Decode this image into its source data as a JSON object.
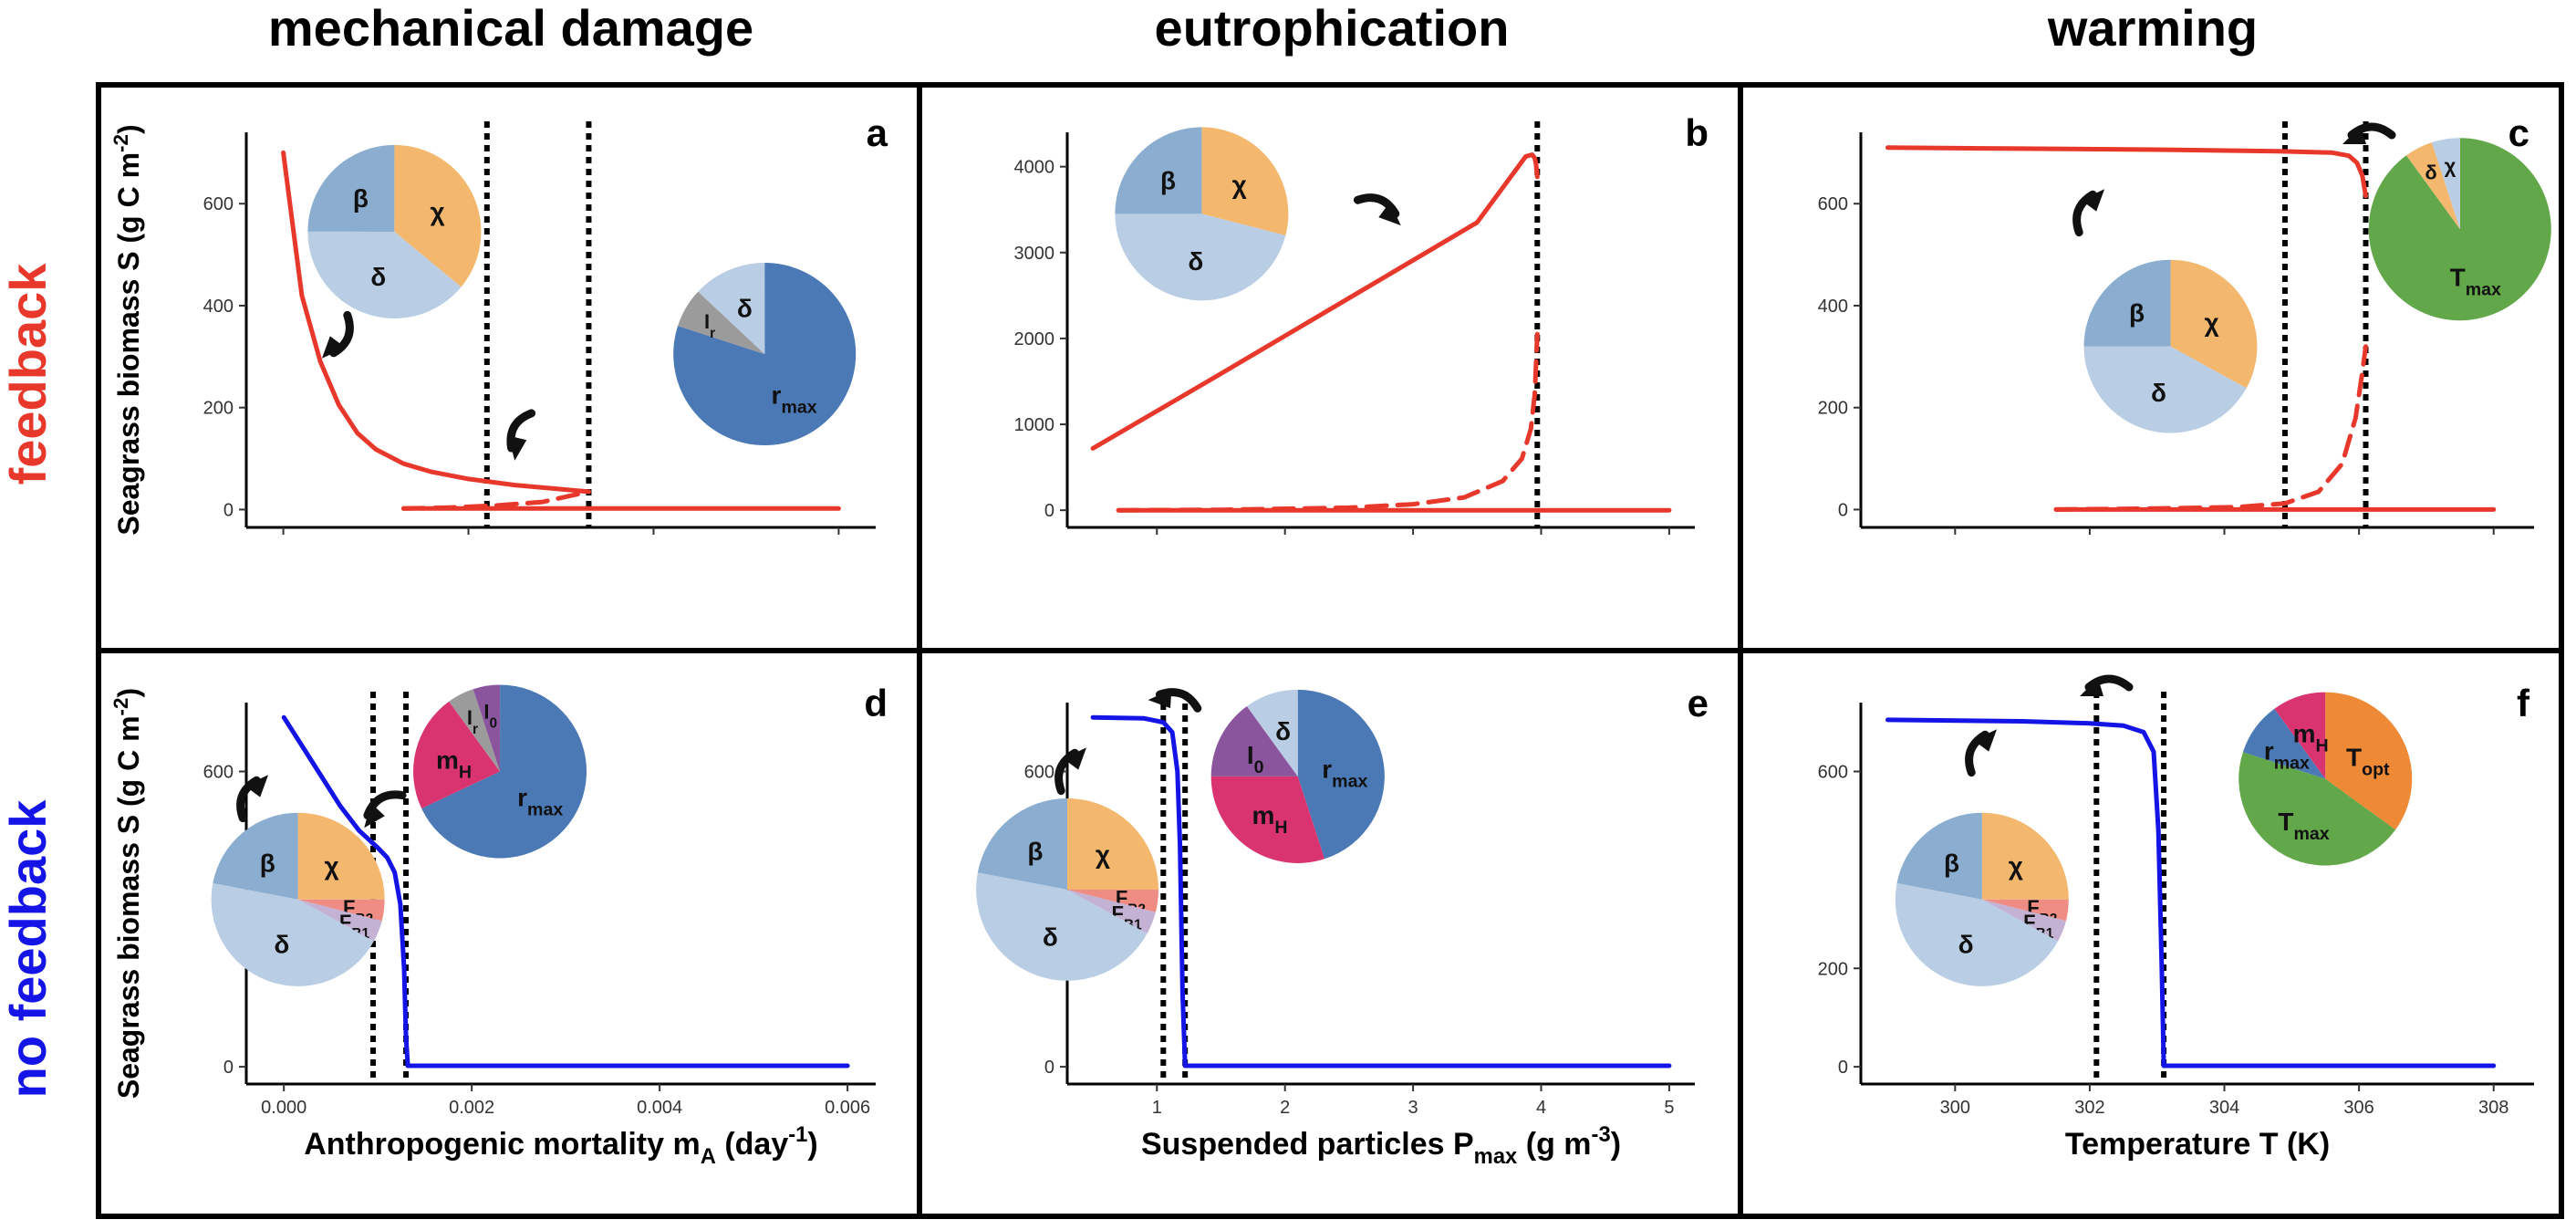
{
  "columns": [
    "mechanical damage",
    "eutrophication",
    "warming"
  ],
  "rows": [
    {
      "label": "feedback",
      "color": "#e8382b"
    },
    {
      "label": "no feedback",
      "color": "#1414e6"
    }
  ],
  "colors": {
    "feedback": "#e8382b",
    "no_feedback": "#1414e6",
    "beta": "#8aadd0",
    "chi": "#f3b86e",
    "delta": "#b9cde4",
    "rmax": "#4a79b5",
    "Ir": "#9b9b9b",
    "I0": "#8b559e",
    "mH": "#d9346f",
    "FB2": "#ef8c83",
    "FB1": "#c3b2d3",
    "Tmax": "#63a74b",
    "Topt": "#ee8a36",
    "arrow": "#111111"
  },
  "chart_data": [
    {
      "panel": "a",
      "type": "line",
      "row": 0,
      "col": 0,
      "xlabel": "",
      "ylabel": "Seagrass biomass S (g C m-2)",
      "xlim": [
        -0.0004,
        0.0064
      ],
      "ylim": [
        -35,
        740
      ],
      "xticks": [
        0,
        0.002,
        0.004,
        0.006
      ],
      "xtick_labels": [
        "",
        "",
        "",
        ""
      ],
      "yticks": [
        0,
        200,
        400,
        600
      ],
      "ytick_labels": [
        "0",
        "200",
        "400",
        "600"
      ],
      "thresholds": [
        0.0022,
        0.0033
      ],
      "series": [
        {
          "style": "solid",
          "x": [
            0,
            0.0002,
            0.0004,
            0.0006,
            0.0008,
            0.001,
            0.0013,
            0.0016,
            0.002,
            0.0025,
            0.003,
            0.0033
          ],
          "y": [
            700,
            420,
            290,
            205,
            150,
            118,
            90,
            74,
            60,
            48,
            40,
            35
          ]
        },
        {
          "style": "dashed",
          "x": [
            0.0013,
            0.0018,
            0.0023,
            0.0028,
            0.0033
          ],
          "y": [
            2,
            4,
            8,
            15,
            35
          ]
        },
        {
          "style": "solid",
          "x": [
            0.0013,
            0.006
          ],
          "y": [
            2,
            2
          ]
        }
      ],
      "pies": [
        {
          "cx": 0.0012,
          "cy": 545,
          "r": 95,
          "slices": [
            {
              "label": "χ",
              "value": 36,
              "color_key": "chi"
            },
            {
              "label": "δ",
              "value": 39,
              "color_key": "delta"
            },
            {
              "label": "β",
              "value": 25,
              "color_key": "beta"
            }
          ]
        },
        {
          "cx": 0.0052,
          "cy": 305,
          "r": 100,
          "slices": [
            {
              "label": "rmax",
              "value": 80,
              "color_key": "rmax"
            },
            {
              "label": "Ir",
              "value": 7,
              "color_key": "Ir"
            },
            {
              "label": "δ",
              "value": 13,
              "color_key": "delta"
            }
          ]
        }
      ]
    },
    {
      "panel": "b",
      "type": "line",
      "row": 0,
      "col": 1,
      "xlabel": "",
      "ylabel": "",
      "xlim": [
        0.3,
        5.2
      ],
      "ylim": [
        -200,
        4400
      ],
      "xticks": [
        1,
        2,
        3,
        4,
        5
      ],
      "xtick_labels": [
        "",
        "",
        "",
        "",
        ""
      ],
      "yticks": [
        0,
        1000,
        2000,
        3000,
        4000
      ],
      "ytick_labels": [
        "0",
        "1000",
        "2000",
        "3000",
        "4000"
      ],
      "thresholds": [
        3.97
      ],
      "series": [
        {
          "style": "solid",
          "x": [
            0.5,
            1.5,
            2.5,
            3.5,
            3.88,
            3.93,
            3.95,
            3.96,
            3.97
          ],
          "y": [
            720,
            1590,
            2470,
            3350,
            4120,
            4140,
            4100,
            4030,
            3880
          ]
        },
        {
          "style": "dashed",
          "x": [
            0.7,
            1.5,
            2.5,
            3.0,
            3.4,
            3.7,
            3.85,
            3.92,
            3.95,
            3.96,
            3.97
          ],
          "y": [
            0,
            5,
            30,
            70,
            150,
            340,
            600,
            950,
            1350,
            1700,
            2050
          ]
        },
        {
          "style": "solid",
          "x": [
            0.7,
            5.0
          ],
          "y": [
            0,
            0
          ]
        }
      ],
      "pies": [
        {
          "cx": 1.35,
          "cy": 3450,
          "r": 95,
          "slices": [
            {
              "label": "χ",
              "value": 29,
              "color_key": "chi"
            },
            {
              "label": "δ",
              "value": 46,
              "color_key": "delta"
            },
            {
              "label": "β",
              "value": 25,
              "color_key": "beta"
            }
          ]
        }
      ]
    },
    {
      "panel": "c",
      "type": "line",
      "row": 0,
      "col": 2,
      "xlabel": "",
      "ylabel": "",
      "xlim": [
        298.6,
        308.6
      ],
      "ylim": [
        -35,
        740
      ],
      "xticks": [
        300,
        302,
        304,
        306,
        308
      ],
      "xtick_labels": [
        "",
        "",
        "",
        "",
        ""
      ],
      "yticks": [
        0,
        200,
        400,
        600
      ],
      "ytick_labels": [
        "0",
        "200",
        "400",
        "600"
      ],
      "thresholds": [
        304.9,
        306.1
      ],
      "series": [
        {
          "style": "solid",
          "x": [
            299,
            301,
            303,
            304.8,
            305.6,
            305.85,
            305.97,
            306.05,
            306.1
          ],
          "y": [
            710,
            708,
            706,
            703,
            700,
            694,
            680,
            655,
            615
          ]
        },
        {
          "style": "dashed",
          "x": [
            301.5,
            303,
            304.2,
            304.9,
            305.4,
            305.75,
            305.95,
            306.05,
            306.1
          ],
          "y": [
            0,
            2,
            5,
            12,
            35,
            90,
            180,
            270,
            320
          ]
        },
        {
          "style": "solid",
          "x": [
            301.5,
            308
          ],
          "y": [
            0,
            0
          ]
        }
      ],
      "pies": [
        {
          "cx": 303.2,
          "cy": 320,
          "r": 95,
          "slices": [
            {
              "label": "χ",
              "value": 33,
              "color_key": "chi"
            },
            {
              "label": "δ",
              "value": 42,
              "color_key": "delta"
            },
            {
              "label": "β",
              "value": 25,
              "color_key": "beta"
            }
          ]
        },
        {
          "cx": 307.5,
          "cy": 550,
          "r": 100,
          "slices": [
            {
              "label": "Tmax",
              "value": 90,
              "color_key": "Tmax"
            },
            {
              "label": "δ",
              "value": 5,
              "color_key": "chi"
            },
            {
              "label": "χ",
              "value": 5,
              "color_key": "delta"
            }
          ]
        }
      ]
    },
    {
      "panel": "d",
      "type": "line",
      "row": 1,
      "col": 0,
      "xlabel": "Anthropogenic mortality mA (day-1)",
      "ylabel": "Seagrass biomass S (g C m-2)",
      "xlim": [
        -0.0004,
        0.0063
      ],
      "ylim": [
        -35,
        740
      ],
      "xticks": [
        0,
        0.002,
        0.004,
        0.006
      ],
      "xtick_labels": [
        "0.000",
        "0.002",
        "0.004",
        "0.006"
      ],
      "yticks": [
        0,
        600
      ],
      "ytick_labels": [
        "0",
        "600"
      ],
      "thresholds": [
        0.00095,
        0.0013
      ],
      "series": [
        {
          "style": "solid",
          "x": [
            0,
            0.0002,
            0.0004,
            0.0006,
            0.0008,
            0.001,
            0.0011,
            0.00118,
            0.00124,
            0.00128,
            0.0013,
            0.00132
          ],
          "y": [
            710,
            650,
            590,
            530,
            480,
            445,
            425,
            395,
            330,
            200,
            60,
            2
          ]
        },
        {
          "style": "solid",
          "x": [
            0.00132,
            0.006
          ],
          "y": [
            2,
            2
          ]
        }
      ],
      "pies": [
        {
          "cx": 0.0023,
          "cy": 600,
          "r": 95,
          "slices": [
            {
              "label": "rmax",
              "value": 68,
              "color_key": "rmax"
            },
            {
              "label": "mH",
              "value": 22,
              "color_key": "mH"
            },
            {
              "label": "Ir",
              "value": 5,
              "color_key": "Ir"
            },
            {
              "label": "I0",
              "value": 5,
              "color_key": "I0"
            }
          ]
        },
        {
          "cx": 0.00015,
          "cy": 340,
          "r": 95,
          "slices": [
            {
              "label": "χ",
              "value": 25,
              "color_key": "chi"
            },
            {
              "label": "FB2",
              "value": 4,
              "color_key": "FB2"
            },
            {
              "label": "FB1",
              "value": 4,
              "color_key": "FB1"
            },
            {
              "label": "δ",
              "value": 45,
              "color_key": "delta"
            },
            {
              "label": "β",
              "value": 22,
              "color_key": "beta"
            }
          ]
        }
      ]
    },
    {
      "panel": "e",
      "type": "line",
      "row": 1,
      "col": 1,
      "xlabel": "Suspended particles Pmax (g m-3)",
      "ylabel": "",
      "xlim": [
        0.3,
        5.2
      ],
      "ylim": [
        -35,
        740
      ],
      "xticks": [
        1,
        2,
        3,
        4,
        5
      ],
      "xtick_labels": [
        "1",
        "2",
        "3",
        "4",
        "5"
      ],
      "yticks": [
        0,
        600
      ],
      "ytick_labels": [
        "0",
        "600"
      ],
      "thresholds": [
        1.05,
        1.22
      ],
      "series": [
        {
          "style": "solid",
          "x": [
            0.5,
            0.9,
            1.05,
            1.12,
            1.16,
            1.18,
            1.2,
            1.22
          ],
          "y": [
            710,
            708,
            700,
            680,
            600,
            450,
            150,
            2
          ]
        },
        {
          "style": "solid",
          "x": [
            1.22,
            5.0
          ],
          "y": [
            2,
            2
          ]
        }
      ],
      "pies": [
        {
          "cx": 2.1,
          "cy": 590,
          "r": 95,
          "slices": [
            {
              "label": "rmax",
              "value": 45,
              "color_key": "rmax"
            },
            {
              "label": "mH",
              "value": 30,
              "color_key": "mH"
            },
            {
              "label": "I0",
              "value": 15,
              "color_key": "I0"
            },
            {
              "label": "δ",
              "value": 10,
              "color_key": "delta"
            }
          ]
        },
        {
          "cx": 0.3,
          "cy": 360,
          "r": 100,
          "slices": [
            {
              "label": "χ",
              "value": 25,
              "color_key": "chi"
            },
            {
              "label": "FB2",
              "value": 4,
              "color_key": "FB2"
            },
            {
              "label": "FB1",
              "value": 4,
              "color_key": "FB1"
            },
            {
              "label": "δ",
              "value": 45,
              "color_key": "delta"
            },
            {
              "label": "β",
              "value": 22,
              "color_key": "beta"
            }
          ]
        }
      ]
    },
    {
      "panel": "f",
      "type": "line",
      "row": 1,
      "col": 2,
      "xlabel": "Temperature T (K)",
      "ylabel": "",
      "xlim": [
        298.6,
        308.6
      ],
      "ylim": [
        -35,
        740
      ],
      "xticks": [
        300,
        302,
        304,
        306,
        308
      ],
      "xtick_labels": [
        "300",
        "302",
        "304",
        "306",
        "308"
      ],
      "yticks": [
        0,
        200,
        600
      ],
      "ytick_labels": [
        "0",
        "200",
        "600"
      ],
      "thresholds": [
        302.1,
        303.1
      ],
      "series": [
        {
          "style": "solid",
          "x": [
            299,
            301,
            302,
            302.5,
            302.8,
            302.95,
            303.02,
            303.07,
            303.1
          ],
          "y": [
            705,
            702,
            698,
            693,
            680,
            640,
            480,
            200,
            2
          ]
        },
        {
          "style": "solid",
          "x": [
            303.1,
            308
          ],
          "y": [
            2,
            2
          ]
        }
      ],
      "pies": [
        {
          "cx": 305.5,
          "cy": 585,
          "r": 95,
          "slices": [
            {
              "label": "Topt",
              "value": 35,
              "color_key": "Topt"
            },
            {
              "label": "Tmax",
              "value": 45,
              "color_key": "Tmax"
            },
            {
              "label": "rmax",
              "value": 10,
              "color_key": "rmax"
            },
            {
              "label": "mH",
              "value": 10,
              "color_key": "mH"
            }
          ]
        },
        {
          "cx": 300.4,
          "cy": 340,
          "r": 95,
          "slices": [
            {
              "label": "χ",
              "value": 25,
              "color_key": "chi"
            },
            {
              "label": "FB2",
              "value": 4,
              "color_key": "FB2"
            },
            {
              "label": "FB1",
              "value": 4,
              "color_key": "FB1"
            },
            {
              "label": "δ",
              "value": 45,
              "color_key": "delta"
            },
            {
              "label": "β",
              "value": 22,
              "color_key": "beta"
            }
          ]
        }
      ]
    }
  ]
}
